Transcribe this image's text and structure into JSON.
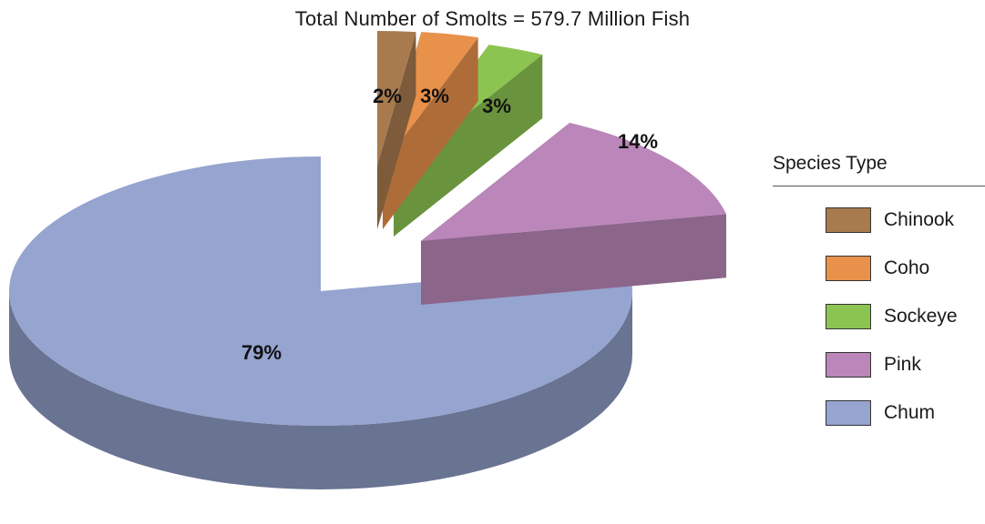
{
  "chart_data": {
    "type": "pie",
    "title": "Total Number of Smolts = 579.7 Million Fish",
    "legend_title": "Species Type",
    "legend_position": "right",
    "slices": [
      {
        "name": "Chinook",
        "value": 2,
        "label": "2%",
        "color": "#A87B4F"
      },
      {
        "name": "Coho",
        "value": 3,
        "label": "3%",
        "color": "#E8914A"
      },
      {
        "name": "Sockeye",
        "value": 3,
        "label": "3%",
        "color": "#8CC451"
      },
      {
        "name": "Pink",
        "value": 14,
        "label": "14%",
        "color": "#BB86B9"
      },
      {
        "name": "Chum",
        "value": 79,
        "label": "79%",
        "color": "#96A4D0"
      }
    ]
  }
}
